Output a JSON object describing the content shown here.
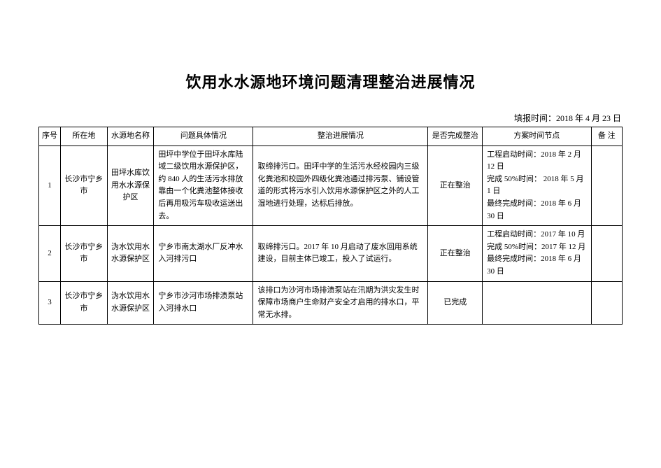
{
  "title": "饮用水水源地环境问题清理整治进展情况",
  "report_time_label": "填报时间：",
  "report_time_value": "2018 年 4 月 23 日",
  "headers": {
    "index": "序号",
    "location": "所在地",
    "source_name": "水源地名称",
    "issue": "问题具体情况",
    "progress": "整治进展情况",
    "completed": "是否完成整治",
    "plan": "方案时间节点",
    "note": "备 注"
  },
  "rows": [
    {
      "index": "1",
      "location": "长沙市宁乡市",
      "source_name": "田坪水库饮用水水源保护区",
      "issue": "田坪中学位于田坪水库陆域二级饮用水源保护区，约 840 人的生活污水排放靠由一个化粪池整体接收后再用吸污车吸收运送出去。",
      "progress": "取缔排污口。田坪中学的生活污水经校园内三级化粪池和校园外四级化粪池通过排污泵、铺设管道的形式将污水引入饮用水源保护区之外的人工湿地进行处理，达标后排放。",
      "completed": "正在整治",
      "plan": "工程启动时间：2018 年 2 月 12 日\n完成 50%时间： 2018 年 5 月 1 日\n最终完成时间：2018 年 6 月 30 日",
      "note": ""
    },
    {
      "index": "2",
      "location": "长沙市宁乡市",
      "source_name": "沩水饮用水水源保护区",
      "issue": "宁乡市南太湖水厂反冲水入河排污口",
      "progress": "取缔排污口。2017 年 10 月启动了废水回用系统建设，目前主体已竣工，投入了试运行。",
      "completed": "正在整治",
      "plan": "工程启动时间：2017 年 10 月\n完成 50%时间：2017 年 12 月\n最终完成时间：2018 年 6 月 30 日",
      "note": ""
    },
    {
      "index": "3",
      "location": "长沙市宁乡市",
      "source_name": "沩水饮用水水源保护区",
      "issue": "宁乡市沙河市场排渍泵站入河排水口",
      "progress": "该排口为沙河市场排渍泵站在汛期为洪灾发生时保障市场商户生命财产安全才启用的排水口，平常无水排。",
      "completed": "已完成",
      "plan": "",
      "note": ""
    }
  ]
}
